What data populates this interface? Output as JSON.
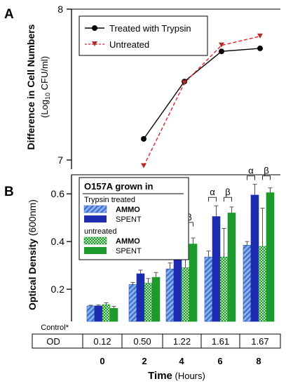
{
  "colors": {
    "axis": "#000000",
    "treated_line": "#000000",
    "untreated_line": "#e8202a",
    "untreated_marker": "#b22a2a",
    "ammo_treated": "#4a7fd8",
    "spent_treated": "#1c2bb0",
    "ammo_untreated": "#1fa23a",
    "spent_untreated": "#1c9a2c",
    "error_bar": "#555555"
  },
  "panels": {
    "a_label": "A",
    "b_label": "B"
  },
  "chart_data": [
    {
      "type": "line",
      "panel": "A",
      "ylabel_line1": "Difference in Cell Numbers",
      "ylabel_line2_pre": "(Log",
      "ylabel_line2_sub": "10",
      "ylabel_line2_post": " CFU/ml)",
      "ylim": [
        7,
        8
      ],
      "yticks": [
        "7",
        "8"
      ],
      "x": [
        2,
        4,
        6,
        8
      ],
      "series": [
        {
          "name": "Treated with Trypsin",
          "values": [
            7.14,
            7.52,
            7.72,
            7.74
          ]
        },
        {
          "name": "Untreated",
          "values": [
            6.96,
            7.51,
            7.76,
            7.82
          ]
        }
      ]
    },
    {
      "type": "bar",
      "panel": "B",
      "ylabel_main": "Optical Density",
      "ylabel_unit": " (600nm)",
      "xlabel_main": "Time",
      "xlabel_unit": " (Hours)",
      "ylim": [
        0.065,
        0.68
      ],
      "yticks": [
        "0.2",
        "0.4",
        "0.6"
      ],
      "ytick_values": [
        0.2,
        0.4,
        0.6
      ],
      "categories": [
        "0",
        "2",
        "4",
        "6",
        "8"
      ],
      "legend": {
        "title": "O157A grown in",
        "group1": "Trypsin treated",
        "group2": "untreated",
        "ammo": "AMMO",
        "spent": "SPENT"
      },
      "series": [
        {
          "name": "AMMO",
          "group": "Trypsin treated",
          "values": [
            0.13,
            0.22,
            0.285,
            0.335,
            0.385
          ],
          "errors": [
            0.003,
            0.008,
            0.025,
            0.025,
            0.015
          ]
        },
        {
          "name": "SPENT",
          "group": "Trypsin treated",
          "values": [
            0.13,
            0.265,
            0.4,
            0.505,
            0.595
          ],
          "errors": [
            0.004,
            0.015,
            0.045,
            0.045,
            0.045
          ]
        },
        {
          "name": "AMMO",
          "group": "untreated",
          "values": [
            0.135,
            0.225,
            0.29,
            0.335,
            0.38
          ],
          "errors": [
            0.008,
            0.02,
            0.09,
            0.12,
            0.16
          ]
        },
        {
          "name": "SPENT",
          "group": "untreated",
          "values": [
            0.12,
            0.25,
            0.39,
            0.52,
            0.605
          ],
          "errors": [
            0.008,
            0.02,
            0.025,
            0.025,
            0.02
          ]
        }
      ],
      "significance": [
        {
          "category": "4",
          "alpha": "α",
          "beta": "β"
        },
        {
          "category": "6",
          "alpha": "α",
          "beta": "β"
        },
        {
          "category": "8",
          "alpha": "α",
          "beta": "β"
        }
      ],
      "control_table": {
        "row_label": "Control*",
        "od_label": "OD",
        "values": [
          "0.12",
          "0.50",
          "1.22",
          "1.61",
          "1.67"
        ]
      }
    }
  ]
}
